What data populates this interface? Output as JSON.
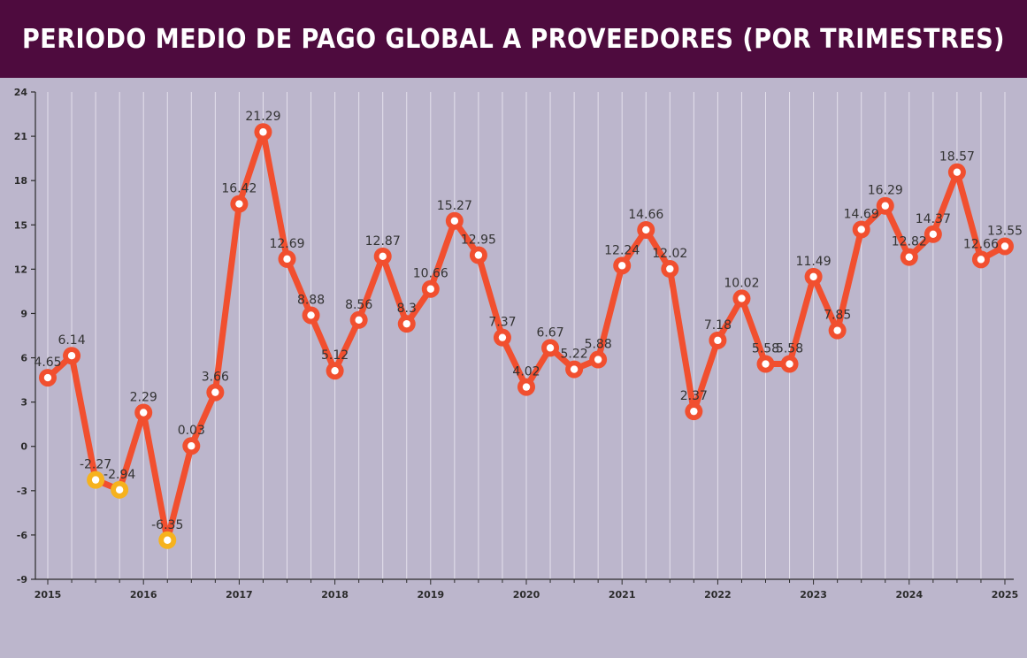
{
  "title": "PERIODO MEDIO DE PAGO GLOBAL A PROVEEDORES (POR TRIMESTRES)",
  "colors": {
    "header_bg": "#4e0b3e",
    "plot_bg": "#bcb6cc",
    "line": "#f14f2f",
    "negative_marker": "#f6b21e",
    "gridline": "#e4e0ec",
    "axis": "#2b2b2b",
    "label_text": "#333333"
  },
  "chart_data": {
    "type": "line",
    "title": "PERIODO MEDIO DE PAGO GLOBAL A PROVEEDORES (POR TRIMESTRES)",
    "xlabel": "",
    "ylabel": "",
    "ylim": [
      -9,
      24
    ],
    "yticks": [
      -9,
      -6,
      -3,
      0,
      3,
      6,
      9,
      12,
      15,
      18,
      21,
      24
    ],
    "grid": "vertical",
    "legend": "none",
    "year_labels": [
      "2015",
      "2016",
      "2017",
      "2018",
      "2019",
      "2020",
      "2021",
      "2022",
      "2023",
      "2024",
      "2025"
    ],
    "x": [
      "2015-Q1",
      "2015-Q2",
      "2015-Q3",
      "2015-Q4",
      "2016-Q1",
      "2016-Q2",
      "2016-Q3",
      "2016-Q4",
      "2017-Q1",
      "2017-Q2",
      "2017-Q3",
      "2017-Q4",
      "2018-Q1",
      "2018-Q2",
      "2018-Q3",
      "2018-Q4",
      "2019-Q1",
      "2019-Q2",
      "2019-Q3",
      "2019-Q4",
      "2020-Q1",
      "2020-Q2",
      "2020-Q3",
      "2020-Q4",
      "2021-Q1",
      "2021-Q2",
      "2021-Q3",
      "2021-Q4",
      "2022-Q1",
      "2022-Q2",
      "2022-Q3",
      "2022-Q4",
      "2023-Q1",
      "2023-Q2",
      "2023-Q3",
      "2023-Q4",
      "2024-Q1",
      "2024-Q2",
      "2024-Q3",
      "2024-Q4",
      "2025-Q1"
    ],
    "values": [
      4.65,
      6.14,
      -2.27,
      -2.94,
      2.29,
      -6.35,
      0.03,
      3.66,
      16.42,
      21.29,
      12.69,
      8.88,
      5.12,
      8.56,
      12.87,
      8.3,
      10.66,
      15.27,
      12.95,
      7.37,
      4.02,
      6.67,
      5.22,
      5.88,
      12.24,
      14.66,
      12.02,
      2.37,
      7.18,
      10.02,
      5.58,
      5.58,
      11.49,
      7.85,
      14.69,
      16.29,
      12.82,
      14.37,
      18.57,
      12.66,
      13.55
    ],
    "data_labels": [
      "4.65",
      "6.14",
      "-2.27",
      "-2.94",
      "2.29",
      "-6.35",
      "0.03",
      "3.66",
      "16.42",
      "21.29",
      "12.69",
      "8.88",
      "5.12",
      "8.56",
      "12.87",
      "8.3",
      "10.66",
      "15.27",
      "12.95",
      "7.37",
      "4.02",
      "6.67",
      "5.22",
      "5.88",
      "12.24",
      "14.66",
      "12.02",
      "2.37",
      "7.18",
      "10.02",
      "5.58",
      "5.58",
      "11.49",
      "7.85",
      "14.69",
      "16.29",
      "12.82",
      "14.37",
      "18.57",
      "12.66",
      "13.55"
    ]
  }
}
